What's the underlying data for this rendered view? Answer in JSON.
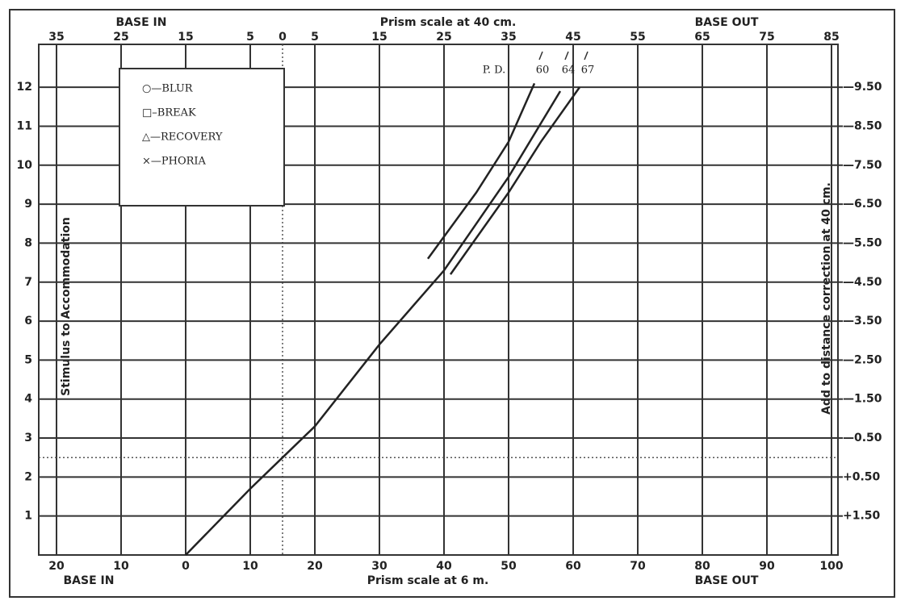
{
  "chart_data": {
    "type": "line",
    "x2_label_left": "BASE IN",
    "x2_label": "Prism scale at 40 cm.",
    "x2_label_right": "BASE OUT",
    "x_label_left": "BASE IN",
    "x_label": "Prism scale at 6 m.",
    "x_label_right": "BASE OUT",
    "y_label": "Stimulus to Accommodation",
    "y2_label": "Add to distance correction at 40 cm.",
    "annotation": "P. D.",
    "legend_items": [
      "○—BLUR",
      "□–BREAK",
      "△—RECOVERY",
      "×—PHORIA"
    ],
    "xlim": [
      -22.75,
      101
    ],
    "xticks": [
      {
        "value": -20,
        "label": "20"
      },
      {
        "value": -10,
        "label": "10"
      },
      0,
      10,
      20,
      30,
      40,
      50,
      60,
      70,
      80,
      90,
      100
    ],
    "x2lim": [
      -37.75,
      86
    ],
    "x2ticks": [
      {
        "value": -35,
        "label": "35"
      },
      {
        "value": -25,
        "label": "25"
      },
      {
        "value": -15,
        "label": "15"
      },
      {
        "value": -5,
        "label": "5"
      },
      0,
      5,
      15,
      25,
      35,
      45,
      55,
      65,
      75,
      85
    ],
    "ylim": [
      0,
      13.1
    ],
    "yticks": [
      1,
      2,
      3,
      4,
      5,
      6,
      7,
      8,
      9,
      10,
      11,
      12
    ],
    "y2lim": [
      2.5,
      -10.6
    ],
    "y2ticks": [
      {
        "value": 1.5,
        "label": "+1.50"
      },
      {
        "value": 0.5,
        "label": "+0.50"
      },
      {
        "value": -0.5,
        "label": "—0.50"
      },
      {
        "value": -1.5,
        "label": "—1.50"
      },
      {
        "value": -2.5,
        "label": "—2.50"
      },
      {
        "value": -3.5,
        "label": "—3.50"
      },
      {
        "value": -4.5,
        "label": "—4.50"
      },
      {
        "value": -5.5,
        "label": "—5.50"
      },
      {
        "value": -6.5,
        "label": "—6.50"
      },
      {
        "value": -7.5,
        "label": "—7.50"
      },
      {
        "value": -8.5,
        "label": "—8.50"
      },
      {
        "value": -9.5,
        "label": "—9.50"
      }
    ],
    "grid": true,
    "series": [
      {
        "name": "60",
        "color": "#222222",
        "x": [
          37.5,
          45,
          50,
          54
        ],
        "values": [
          7.6,
          9.3,
          10.6,
          12.1
        ]
      },
      {
        "name": "64",
        "color": "#222222",
        "x": [
          0,
          10,
          15,
          20,
          30,
          40,
          45,
          50,
          58
        ],
        "values": [
          0,
          1.7,
          2.5,
          3.3,
          5.4,
          7.3,
          8.5,
          9.7,
          11.9
        ]
      },
      {
        "name": "67",
        "color": "#222222",
        "x": [
          41,
          50,
          55,
          61
        ],
        "values": [
          7.2,
          9.3,
          10.6,
          12
        ]
      }
    ]
  }
}
